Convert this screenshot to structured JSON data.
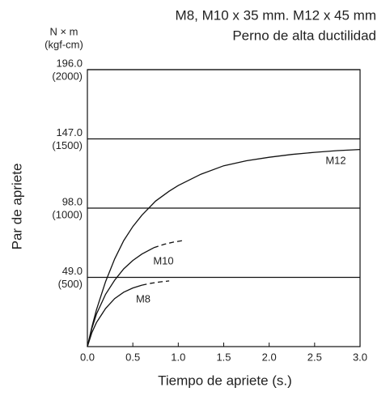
{
  "chart_data": {
    "type": "line",
    "title": [
      "M8, M10 x 35 mm. M12 x 45 mm",
      "Perno de alta ductilidad"
    ],
    "y_unit": [
      "N × m",
      "(kgf-cm)"
    ],
    "y_label": "Par de apriete",
    "x_label": "Tiempo de apriete (s.)",
    "xlim": [
      0,
      3
    ],
    "ylim": [
      0,
      196
    ],
    "xticks": [
      {
        "value": 0,
        "label": "0.0"
      },
      {
        "value": 0.5,
        "label": "0.5"
      },
      {
        "value": 1,
        "label": "1.0"
      },
      {
        "value": 1.5,
        "label": "1.5"
      },
      {
        "value": 2,
        "label": "2.0"
      },
      {
        "value": 2.5,
        "label": "2.5"
      },
      {
        "value": 3,
        "label": "3.0"
      }
    ],
    "yticks": [
      {
        "value": 49,
        "label": "49.0"
      },
      {
        "value": 98,
        "label": "98.0"
      },
      {
        "value": 147,
        "label": "147.0"
      },
      {
        "value": 196,
        "label": "196.0"
      }
    ],
    "ytick_sublabels": [
      "(500)",
      "(1000)",
      "(1500)",
      "(2000)"
    ],
    "grid": true,
    "color": "#111111",
    "series": [
      {
        "name": "M12",
        "x": [
          0,
          0.05,
          0.1,
          0.2,
          0.3,
          0.4,
          0.5,
          0.6,
          0.75,
          0.9,
          1.0,
          1.25,
          1.5,
          1.75,
          2.0,
          2.25,
          2.5,
          2.75,
          3.0
        ],
        "values": [
          0,
          14,
          26,
          46,
          62,
          75,
          85,
          93,
          103,
          110,
          114,
          122,
          128,
          131.5,
          134,
          136,
          137.5,
          138.7,
          139.5
        ]
      },
      {
        "name": "M10",
        "x": [
          0,
          0.05,
          0.1,
          0.2,
          0.3,
          0.4,
          0.5,
          0.6,
          0.73
        ],
        "values": [
          0,
          13,
          23,
          37,
          47,
          55,
          61,
          65.5,
          70
        ],
        "dashed_x": [
          0.73,
          0.85,
          0.95,
          1.05
        ],
        "dashed_values": [
          70,
          72.5,
          74,
          75
        ]
      },
      {
        "name": "M8",
        "x": [
          0,
          0.05,
          0.1,
          0.2,
          0.3,
          0.4,
          0.5,
          0.6
        ],
        "values": [
          0,
          10,
          17,
          27,
          34,
          38.5,
          41.5,
          43.5
        ],
        "dashed_x": [
          0.6,
          0.7,
          0.8,
          0.9
        ],
        "dashed_values": [
          43.5,
          44.8,
          45.8,
          46.5
        ]
      }
    ]
  }
}
